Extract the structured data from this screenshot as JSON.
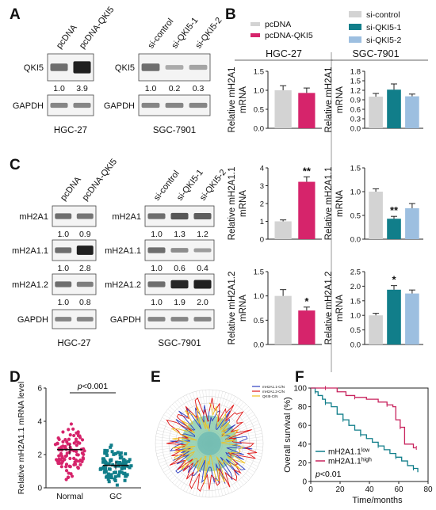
{
  "panels": {
    "A": {
      "letter": "A",
      "left": {
        "lanes": [
          "pcDNA",
          "pcDNA-QKI5"
        ],
        "blots": [
          {
            "name": "QKI5",
            "values": [
              "1.0",
              "3.9"
            ]
          },
          {
            "name": "GAPDH",
            "values": []
          }
        ],
        "cell_line": "HGC-27"
      },
      "right": {
        "lanes": [
          "si-control",
          "si-QKI5-1",
          "si-QKI5-2"
        ],
        "blots": [
          {
            "name": "QKI5",
            "values": [
              "1.0",
              "0.2",
              "0.3"
            ]
          },
          {
            "name": "GAPDH",
            "values": []
          }
        ],
        "cell_line": "SGC-7901"
      }
    },
    "B": {
      "letter": "B",
      "legend_left": [
        {
          "label": "pcDNA",
          "color": "#d3d3d3"
        },
        {
          "label": "pcDNA-QKI5",
          "color": "#d6246b"
        }
      ],
      "legend_right": [
        {
          "label": "si-control",
          "color": "#d3d3d3"
        },
        {
          "label": "si-QKI5-1",
          "color": "#117e8a"
        },
        {
          "label": "si-QKI5-2",
          "color": "#9dbfe0"
        }
      ],
      "col_headers": [
        "HGC-27",
        "SGC-7901"
      ]
    },
    "C": {
      "letter": "C",
      "left": {
        "lanes": [
          "pcDNA",
          "pcDNA-QKI5"
        ],
        "blots": [
          {
            "name": "mH2A1",
            "values": [
              "1.0",
              "0.9"
            ]
          },
          {
            "name": "mH2A1.1",
            "values": [
              "1.0",
              "2.8"
            ]
          },
          {
            "name": "mH2A1.2",
            "values": [
              "1.0",
              "0.8"
            ]
          },
          {
            "name": "GAPDH",
            "values": []
          }
        ],
        "cell_line": "HGC-27"
      },
      "right": {
        "lanes": [
          "si-control",
          "si-QKI5-1",
          "si-QKI5-2"
        ],
        "blots": [
          {
            "name": "mH2A1",
            "values": [
              "1.0",
              "1.3",
              "1.2"
            ]
          },
          {
            "name": "mH2A1.1",
            "values": [
              "1.0",
              "0.6",
              "0.4"
            ]
          },
          {
            "name": "mH2A1.2",
            "values": [
              "1.0",
              "1.9",
              "2.0"
            ]
          },
          {
            "name": "GAPDH",
            "values": []
          }
        ],
        "cell_line": "SGC-7901"
      }
    },
    "D": {
      "letter": "D"
    },
    "E": {
      "letter": "E"
    },
    "F": {
      "letter": "F"
    }
  },
  "chart_data": [
    {
      "type": "bar",
      "panel": "B",
      "cell_line": "HGC-27",
      "ylabel_line1": "Relative mH2A1",
      "ylabel_line2": "mRNA",
      "ylim": [
        0,
        1.5
      ],
      "yticks": [
        "0.0",
        "0.5",
        "1.0",
        "1.5"
      ],
      "series": [
        {
          "name": "pcDNA",
          "values": [
            1.0
          ],
          "err": [
            0.12
          ]
        },
        {
          "name": "pcDNA-QKI5",
          "values": [
            0.93
          ],
          "err": [
            0.13
          ]
        }
      ],
      "annotations": []
    },
    {
      "type": "bar",
      "panel": "B",
      "cell_line": "SGC-7901",
      "ylabel_line1": "Relative mH2A1",
      "ylabel_line2": "mRNA",
      "ylim": [
        0,
        1.8
      ],
      "yticks": [
        "0.0",
        "0.3",
        "0.6",
        "0.9",
        "1.2",
        "1.5",
        "1.8"
      ],
      "series": [
        {
          "name": "si-control",
          "values": [
            1.0
          ],
          "err": [
            0.1
          ]
        },
        {
          "name": "si-QKI5-1",
          "values": [
            1.22
          ],
          "err": [
            0.18
          ]
        },
        {
          "name": "si-QKI5-2",
          "values": [
            1.01
          ],
          "err": [
            0.07
          ]
        }
      ],
      "annotations": []
    },
    {
      "type": "bar",
      "panel": "B",
      "cell_line": "HGC-27",
      "ylabel_line1": "Relative mH2A1.1",
      "ylabel_line2": "mRNA",
      "ylim": [
        0,
        4
      ],
      "yticks": [
        "0",
        "1",
        "2",
        "3",
        "4"
      ],
      "series": [
        {
          "name": "pcDNA",
          "values": [
            1.0
          ],
          "err": [
            0.08
          ]
        },
        {
          "name": "pcDNA-QKI5",
          "values": [
            3.22
          ],
          "err": [
            0.28
          ]
        }
      ],
      "annotations": [
        {
          "bar": 1,
          "text": "**"
        }
      ]
    },
    {
      "type": "bar",
      "panel": "B",
      "cell_line": "SGC-7901",
      "ylabel_line1": "Relative mH2A1.1",
      "ylabel_line2": "mRNA",
      "ylim": [
        0,
        1.5
      ],
      "yticks": [
        "0.0",
        "0.5",
        "1.0",
        "1.5"
      ],
      "series": [
        {
          "name": "si-control",
          "values": [
            1.0
          ],
          "err": [
            0.06
          ]
        },
        {
          "name": "si-QKI5-1",
          "values": [
            0.43
          ],
          "err": [
            0.05
          ]
        },
        {
          "name": "si-QKI5-2",
          "values": [
            0.65
          ],
          "err": [
            0.1
          ]
        }
      ],
      "annotations": [
        {
          "bar": 1,
          "text": "**"
        }
      ]
    },
    {
      "type": "bar",
      "panel": "B",
      "cell_line": "HGC-27",
      "ylabel_line1": "Relative mH2A1.2",
      "ylabel_line2": "mRNA",
      "ylim": [
        0,
        1.5
      ],
      "yticks": [
        "0.0",
        "0.5",
        "1.0",
        "1.5"
      ],
      "series": [
        {
          "name": "pcDNA",
          "values": [
            1.0
          ],
          "err": [
            0.13
          ]
        },
        {
          "name": "pcDNA-QKI5",
          "values": [
            0.7
          ],
          "err": [
            0.07
          ]
        }
      ],
      "annotations": [
        {
          "bar": 1,
          "text": "*"
        }
      ]
    },
    {
      "type": "bar",
      "panel": "B",
      "cell_line": "SGC-7901",
      "ylabel_line1": "Relative mH2A1.2",
      "ylabel_line2": "mRNA",
      "ylim": [
        0,
        2.5
      ],
      "yticks": [
        "0.0",
        "0.5",
        "1.0",
        "1.5",
        "2.0",
        "2.5"
      ],
      "series": [
        {
          "name": "si-control",
          "values": [
            1.0
          ],
          "err": [
            0.07
          ]
        },
        {
          "name": "si-QKI5-1",
          "values": [
            1.88
          ],
          "err": [
            0.14
          ]
        },
        {
          "name": "si-QKI5-2",
          "values": [
            1.75
          ],
          "err": [
            0.12
          ]
        }
      ],
      "annotations": [
        {
          "bar": 1,
          "text": "*"
        }
      ]
    },
    {
      "type": "scatter",
      "panel": "D",
      "ylabel": "Relative mH2A1.1 mRNA level",
      "categories": [
        "Normal",
        "GC"
      ],
      "ylim": [
        0,
        6
      ],
      "yticks": [
        "0",
        "2",
        "4",
        "6"
      ],
      "means": [
        2.3,
        1.35
      ],
      "sems": [
        0.1,
        0.08
      ],
      "colors": [
        "#d6246b",
        "#117e8a"
      ],
      "n": [
        100,
        100
      ],
      "pvalue_italic": "p",
      "pvalue_rest": "<0.001"
    },
    {
      "type": "radar",
      "panel": "E",
      "legend": [
        {
          "label": "mH2A1.1-C/N",
          "color": "#3040c0"
        },
        {
          "label": "mH2A1.2-C/N",
          "color": "#e01818"
        },
        {
          "label": "QKI5-C/N",
          "color": "#f0c020"
        }
      ],
      "n_spokes": 100
    },
    {
      "type": "line",
      "panel": "F",
      "ylabel": "Overall survival (%)",
      "xlabel": "Time/months",
      "xlim": [
        0,
        80
      ],
      "ylim": [
        0,
        100
      ],
      "xticks": [
        "0",
        "20",
        "40",
        "60",
        "80"
      ],
      "yticks": [
        "0",
        "20",
        "40",
        "60",
        "80",
        "100"
      ],
      "series": [
        {
          "name": "mH2A1.1",
          "sup": "low",
          "color": "#117e8a",
          "points": [
            [
              0,
              100
            ],
            [
              3,
              96
            ],
            [
              5,
              92
            ],
            [
              8,
              88
            ],
            [
              10,
              84
            ],
            [
              14,
              80
            ],
            [
              18,
              72
            ],
            [
              22,
              66
            ],
            [
              26,
              60
            ],
            [
              30,
              55
            ],
            [
              34,
              50
            ],
            [
              38,
              46
            ],
            [
              42,
              42
            ],
            [
              46,
              38
            ],
            [
              50,
              34
            ],
            [
              54,
              30
            ],
            [
              58,
              26
            ],
            [
              62,
              22
            ],
            [
              66,
              17
            ],
            [
              70,
              14
            ],
            [
              73,
              10
            ]
          ]
        },
        {
          "name": "mH2A1.1",
          "sup": "high",
          "color": "#c8245e",
          "points": [
            [
              0,
              100
            ],
            [
              10,
              100
            ],
            [
              18,
              96
            ],
            [
              24,
              92
            ],
            [
              30,
              90
            ],
            [
              38,
              88
            ],
            [
              46,
              85
            ],
            [
              52,
              82
            ],
            [
              56,
              80
            ],
            [
              58,
              66
            ],
            [
              61,
              58
            ],
            [
              64,
              40
            ],
            [
              70,
              36
            ],
            [
              72,
              36
            ]
          ]
        }
      ],
      "pvalue_italic": "p",
      "pvalue_rest": "<0.01"
    }
  ]
}
